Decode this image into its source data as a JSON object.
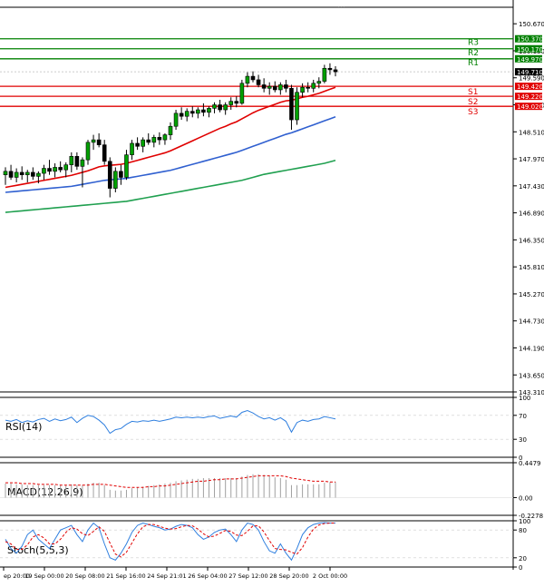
{
  "chart_data": [
    {
      "panel": "price",
      "type": "candlestick",
      "y_axis_ticks": [
        "150.670",
        "150.130",
        "149.590",
        "149.050",
        "148.510",
        "147.970",
        "147.430",
        "146.890",
        "146.350",
        "145.810",
        "145.270",
        "144.730",
        "144.190",
        "143.650",
        "143.310"
      ],
      "y_axis_ticks_values": [
        150.67,
        150.13,
        149.59,
        149.05,
        148.51,
        147.97,
        147.43,
        146.89,
        146.35,
        145.81,
        145.27,
        144.73,
        144.19,
        143.65,
        143.31
      ],
      "ylim": [
        143.31,
        151.0
      ],
      "x_axis_ticks": [
        "ep 20:00",
        "19 Sep 00:00",
        "20 Sep 08:00",
        "21 Sep 16:00",
        "24 Sep 21:01",
        "26 Sep 04:00",
        "27 Sep 12:00",
        "28 Sep 20:00",
        "2 Oct 00:00"
      ],
      "levels": [
        {
          "label": "R3",
          "value": 150.37,
          "value_label": "150.370",
          "color": "#008000"
        },
        {
          "label": "R2",
          "value": 150.17,
          "value_label": "150.170",
          "color": "#008000"
        },
        {
          "label": "R1",
          "value": 149.97,
          "value_label": "149.970",
          "color": "#008000"
        },
        {
          "label": "S1",
          "value": 149.42,
          "value_label": "149.420",
          "color": "#e00000"
        },
        {
          "label": "S2",
          "value": 149.22,
          "value_label": "149.220",
          "color": "#e00000"
        },
        {
          "label": "S3",
          "value": 149.02,
          "value_label": "149.020",
          "color": "#e00000"
        }
      ],
      "current_price": {
        "value": 149.71,
        "label": "149.710"
      },
      "candles": [
        {
          "o": 147.65,
          "h": 147.8,
          "l": 147.45,
          "c": 147.72
        },
        {
          "o": 147.72,
          "h": 147.85,
          "l": 147.55,
          "c": 147.6
        },
        {
          "o": 147.6,
          "h": 147.78,
          "l": 147.5,
          "c": 147.7
        },
        {
          "o": 147.7,
          "h": 147.82,
          "l": 147.55,
          "c": 147.65
        },
        {
          "o": 147.65,
          "h": 147.75,
          "l": 147.5,
          "c": 147.7
        },
        {
          "o": 147.7,
          "h": 147.8,
          "l": 147.55,
          "c": 147.62
        },
        {
          "o": 147.62,
          "h": 147.72,
          "l": 147.48,
          "c": 147.68
        },
        {
          "o": 147.68,
          "h": 147.85,
          "l": 147.55,
          "c": 147.78
        },
        {
          "o": 147.78,
          "h": 147.95,
          "l": 147.65,
          "c": 147.72
        },
        {
          "o": 147.72,
          "h": 147.88,
          "l": 147.6,
          "c": 147.8
        },
        {
          "o": 147.8,
          "h": 147.92,
          "l": 147.7,
          "c": 147.75
        },
        {
          "o": 147.75,
          "h": 147.9,
          "l": 147.6,
          "c": 147.85
        },
        {
          "o": 147.85,
          "h": 148.1,
          "l": 147.7,
          "c": 148.02
        },
        {
          "o": 148.02,
          "h": 148.1,
          "l": 147.75,
          "c": 147.82
        },
        {
          "o": 147.82,
          "h": 148.0,
          "l": 147.4,
          "c": 147.95
        },
        {
          "o": 147.95,
          "h": 148.35,
          "l": 147.85,
          "c": 148.3
        },
        {
          "o": 148.3,
          "h": 148.45,
          "l": 148.15,
          "c": 148.35
        },
        {
          "o": 148.35,
          "h": 148.48,
          "l": 148.2,
          "c": 148.25
        },
        {
          "o": 148.25,
          "h": 148.35,
          "l": 147.85,
          "c": 147.92
        },
        {
          "o": 147.92,
          "h": 148.0,
          "l": 147.2,
          "c": 147.38
        },
        {
          "o": 147.38,
          "h": 147.8,
          "l": 147.3,
          "c": 147.72
        },
        {
          "o": 147.72,
          "h": 147.85,
          "l": 147.45,
          "c": 147.6
        },
        {
          "o": 147.6,
          "h": 148.15,
          "l": 147.55,
          "c": 148.05
        },
        {
          "o": 148.05,
          "h": 148.35,
          "l": 147.95,
          "c": 148.28
        },
        {
          "o": 148.28,
          "h": 148.4,
          "l": 148.15,
          "c": 148.22
        },
        {
          "o": 148.22,
          "h": 148.4,
          "l": 148.1,
          "c": 148.35
        },
        {
          "o": 148.35,
          "h": 148.48,
          "l": 148.25,
          "c": 148.3
        },
        {
          "o": 148.3,
          "h": 148.45,
          "l": 148.2,
          "c": 148.4
        },
        {
          "o": 148.4,
          "h": 148.5,
          "l": 148.25,
          "c": 148.35
        },
        {
          "o": 148.35,
          "h": 148.48,
          "l": 148.25,
          "c": 148.45
        },
        {
          "o": 148.45,
          "h": 148.7,
          "l": 148.35,
          "c": 148.62
        },
        {
          "o": 148.62,
          "h": 148.95,
          "l": 148.55,
          "c": 148.88
        },
        {
          "o": 148.88,
          "h": 149.0,
          "l": 148.75,
          "c": 148.82
        },
        {
          "o": 148.82,
          "h": 148.98,
          "l": 148.72,
          "c": 148.92
        },
        {
          "o": 148.92,
          "h": 149.02,
          "l": 148.8,
          "c": 148.88
        },
        {
          "o": 148.88,
          "h": 149.0,
          "l": 148.78,
          "c": 148.95
        },
        {
          "o": 148.95,
          "h": 149.08,
          "l": 148.82,
          "c": 148.9
        },
        {
          "o": 148.9,
          "h": 149.02,
          "l": 148.8,
          "c": 148.98
        },
        {
          "o": 148.98,
          "h": 149.1,
          "l": 148.88,
          "c": 149.05
        },
        {
          "o": 149.05,
          "h": 149.15,
          "l": 148.9,
          "c": 148.95
        },
        {
          "o": 148.95,
          "h": 149.1,
          "l": 148.85,
          "c": 149.05
        },
        {
          "o": 149.05,
          "h": 149.2,
          "l": 148.95,
          "c": 149.12
        },
        {
          "o": 149.12,
          "h": 149.22,
          "l": 149.0,
          "c": 149.08
        },
        {
          "o": 149.08,
          "h": 149.55,
          "l": 149.05,
          "c": 149.48
        },
        {
          "o": 149.48,
          "h": 149.7,
          "l": 149.4,
          "c": 149.62
        },
        {
          "o": 149.62,
          "h": 149.72,
          "l": 149.5,
          "c": 149.55
        },
        {
          "o": 149.55,
          "h": 149.65,
          "l": 149.4,
          "c": 149.45
        },
        {
          "o": 149.45,
          "h": 149.58,
          "l": 149.3,
          "c": 149.38
        },
        {
          "o": 149.38,
          "h": 149.5,
          "l": 149.25,
          "c": 149.42
        },
        {
          "o": 149.42,
          "h": 149.52,
          "l": 149.3,
          "c": 149.35
        },
        {
          "o": 149.35,
          "h": 149.5,
          "l": 149.25,
          "c": 149.45
        },
        {
          "o": 149.45,
          "h": 149.55,
          "l": 149.3,
          "c": 149.38
        },
        {
          "o": 149.38,
          "h": 149.45,
          "l": 148.55,
          "c": 148.75
        },
        {
          "o": 148.75,
          "h": 149.4,
          "l": 148.65,
          "c": 149.3
        },
        {
          "o": 149.3,
          "h": 149.48,
          "l": 149.2,
          "c": 149.4
        },
        {
          "o": 149.4,
          "h": 149.5,
          "l": 149.3,
          "c": 149.38
        },
        {
          "o": 149.38,
          "h": 149.55,
          "l": 149.3,
          "c": 149.48
        },
        {
          "o": 149.48,
          "h": 149.6,
          "l": 149.38,
          "c": 149.52
        },
        {
          "o": 149.52,
          "h": 149.85,
          "l": 149.48,
          "c": 149.78
        },
        {
          "o": 149.78,
          "h": 149.88,
          "l": 149.65,
          "c": 149.75
        },
        {
          "o": 149.75,
          "h": 149.82,
          "l": 149.62,
          "c": 149.71
        }
      ],
      "moving_averages": [
        {
          "color": "#e00000",
          "values": [
            147.4,
            147.42,
            147.44,
            147.46,
            147.48,
            147.5,
            147.52,
            147.54,
            147.56,
            147.58,
            147.6,
            147.62,
            147.64,
            147.67,
            147.7,
            147.73,
            147.77,
            147.81,
            147.83,
            147.84,
            147.85,
            147.86,
            147.88,
            147.91,
            147.94,
            147.97,
            148.0,
            148.03,
            148.06,
            148.09,
            148.13,
            148.18,
            148.23,
            148.28,
            148.33,
            148.38,
            148.43,
            148.48,
            148.53,
            148.58,
            148.62,
            148.67,
            148.71,
            148.77,
            148.83,
            148.89,
            148.94,
            148.98,
            149.02,
            149.06,
            149.1,
            149.13,
            149.14,
            149.17,
            149.2,
            149.22,
            149.25,
            149.28,
            149.32,
            149.36,
            149.4
          ]
        },
        {
          "color": "#3060d0",
          "values": [
            147.3,
            147.31,
            147.32,
            147.33,
            147.34,
            147.35,
            147.36,
            147.37,
            147.38,
            147.39,
            147.4,
            147.41,
            147.42,
            147.44,
            147.46,
            147.48,
            147.5,
            147.52,
            147.54,
            147.55,
            147.56,
            147.57,
            147.58,
            147.6,
            147.62,
            147.64,
            147.66,
            147.68,
            147.7,
            147.72,
            147.74,
            147.77,
            147.8,
            147.83,
            147.86,
            147.89,
            147.92,
            147.95,
            147.98,
            148.01,
            148.04,
            148.07,
            148.1,
            148.14,
            148.18,
            148.22,
            148.26,
            148.3,
            148.34,
            148.38,
            148.42,
            148.46,
            148.49,
            148.53,
            148.57,
            148.61,
            148.65,
            148.69,
            148.73,
            148.77,
            148.81
          ]
        },
        {
          "color": "#20a050",
          "values": [
            146.9,
            146.91,
            146.92,
            146.93,
            146.94,
            146.95,
            146.96,
            146.97,
            146.98,
            146.99,
            147.0,
            147.01,
            147.02,
            147.03,
            147.04,
            147.05,
            147.06,
            147.07,
            147.08,
            147.09,
            147.1,
            147.11,
            147.12,
            147.14,
            147.16,
            147.18,
            147.2,
            147.22,
            147.24,
            147.26,
            147.28,
            147.3,
            147.32,
            147.34,
            147.36,
            147.38,
            147.4,
            147.42,
            147.44,
            147.46,
            147.48,
            147.5,
            147.52,
            147.54,
            147.57,
            147.6,
            147.63,
            147.66,
            147.68,
            147.7,
            147.72,
            147.74,
            147.76,
            147.78,
            147.8,
            147.82,
            147.84,
            147.86,
            147.88,
            147.91,
            147.94
          ]
        }
      ]
    },
    {
      "panel": "rsi",
      "type": "line",
      "label": "RSI(14)",
      "y_axis_ticks": [
        "100",
        "70",
        "30",
        "0"
      ],
      "y_axis_ticks_values": [
        100,
        70,
        30,
        0
      ],
      "ylim": [
        0,
        100
      ],
      "series": [
        {
          "color": "#2f7fdf",
          "values": [
            62,
            60,
            63,
            58,
            61,
            59,
            63,
            65,
            60,
            64,
            61,
            63,
            67,
            58,
            65,
            70,
            68,
            62,
            54,
            40,
            46,
            48,
            55,
            60,
            59,
            61,
            60,
            62,
            60,
            62,
            64,
            67,
            66,
            67,
            66,
            67,
            66,
            68,
            69,
            65,
            67,
            69,
            67,
            75,
            78,
            74,
            68,
            64,
            66,
            62,
            66,
            60,
            42,
            58,
            62,
            60,
            63,
            64,
            68,
            66,
            64
          ]
        }
      ]
    },
    {
      "panel": "macd",
      "type": "bar+line",
      "label": "MACD(12,26,9)",
      "y_axis_ticks": [
        "0.4479",
        "0.00",
        "-0.2278"
      ],
      "y_axis_ticks_values": [
        0.4479,
        0.0,
        -0.2278
      ],
      "ylim": [
        -0.2278,
        0.4479
      ],
      "histogram": [
        0.18,
        0.18,
        0.17,
        0.17,
        0.16,
        0.16,
        0.16,
        0.16,
        0.16,
        0.16,
        0.16,
        0.16,
        0.17,
        0.16,
        0.16,
        0.18,
        0.19,
        0.19,
        0.16,
        0.1,
        0.09,
        0.09,
        0.1,
        0.12,
        0.13,
        0.14,
        0.15,
        0.16,
        0.17,
        0.18,
        0.19,
        0.21,
        0.22,
        0.23,
        0.24,
        0.24,
        0.25,
        0.25,
        0.25,
        0.25,
        0.25,
        0.25,
        0.25,
        0.27,
        0.29,
        0.3,
        0.3,
        0.29,
        0.28,
        0.26,
        0.25,
        0.23,
        0.16,
        0.16,
        0.17,
        0.17,
        0.17,
        0.17,
        0.19,
        0.2,
        0.2
      ],
      "signal": [
        0.19,
        0.19,
        0.19,
        0.18,
        0.18,
        0.18,
        0.17,
        0.17,
        0.17,
        0.17,
        0.16,
        0.16,
        0.16,
        0.16,
        0.16,
        0.16,
        0.17,
        0.17,
        0.17,
        0.16,
        0.15,
        0.14,
        0.13,
        0.13,
        0.13,
        0.13,
        0.14,
        0.14,
        0.15,
        0.15,
        0.16,
        0.17,
        0.18,
        0.19,
        0.2,
        0.21,
        0.21,
        0.22,
        0.23,
        0.23,
        0.24,
        0.24,
        0.24,
        0.25,
        0.26,
        0.27,
        0.28,
        0.28,
        0.28,
        0.28,
        0.28,
        0.27,
        0.25,
        0.24,
        0.23,
        0.22,
        0.21,
        0.21,
        0.21,
        0.2,
        0.2
      ],
      "hist_color": "#a0a0a0",
      "signal_color": "#e00000"
    },
    {
      "panel": "stoch",
      "type": "line",
      "label": "Stoch(5,5,3)",
      "y_axis_ticks": [
        "100",
        "80",
        "20",
        "0"
      ],
      "y_axis_ticks_values": [
        100,
        80,
        20,
        0
      ],
      "ylim": [
        0,
        100
      ],
      "series": [
        {
          "color": "#2f7fdf",
          "values": [
            60,
            40,
            30,
            45,
            70,
            80,
            60,
            50,
            40,
            60,
            80,
            85,
            90,
            70,
            55,
            80,
            95,
            85,
            50,
            20,
            15,
            30,
            50,
            75,
            90,
            95,
            92,
            88,
            85,
            80,
            82,
            88,
            92,
            90,
            85,
            70,
            60,
            65,
            75,
            80,
            82,
            70,
            55,
            80,
            95,
            92,
            80,
            55,
            35,
            30,
            50,
            30,
            15,
            40,
            70,
            85,
            92,
            95,
            96,
            95,
            95
          ],
          "dashed": false
        },
        {
          "color": "#e00000",
          "values": [
            55,
            50,
            38,
            38,
            48,
            65,
            70,
            63,
            50,
            50,
            60,
            75,
            85,
            82,
            72,
            68,
            77,
            87,
            77,
            52,
            28,
            22,
            32,
            52,
            72,
            87,
            92,
            92,
            88,
            84,
            82,
            83,
            87,
            90,
            89,
            82,
            72,
            65,
            67,
            73,
            79,
            77,
            69,
            68,
            77,
            89,
            89,
            76,
            57,
            40,
            38,
            37,
            32,
            28,
            42,
            65,
            82,
            91,
            94,
            95,
            95
          ],
          "dashed": true
        }
      ]
    }
  ]
}
